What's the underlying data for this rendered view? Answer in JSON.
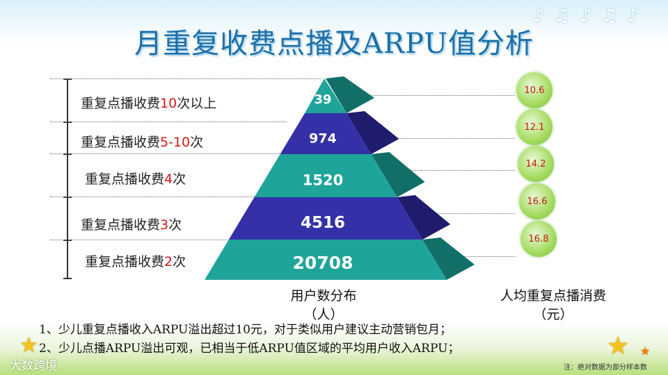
{
  "title": "月重复收费点播及ARPU值分析",
  "chart_data": {
    "type": "pyramid",
    "levels": [
      {
        "prefix": "重复点播收费",
        "highlight": "10",
        "suffix": "次以上",
        "users": 39,
        "arpu": 10.6
      },
      {
        "prefix": "重复点播收费",
        "highlight": "5-10",
        "suffix": "次",
        "users": 974,
        "arpu": 12.1
      },
      {
        "prefix": "重复点播收费",
        "highlight": "4",
        "suffix": "次",
        "users": 1520,
        "arpu": 14.2
      },
      {
        "prefix": "重复点播收费",
        "highlight": "3",
        "suffix": "次",
        "users": 4516,
        "arpu": 16.6
      },
      {
        "prefix": "重复点播收费",
        "highlight": "2",
        "suffix": "次",
        "users": 20708,
        "arpu": 16.8
      }
    ],
    "users_axis_label": "用户数分布",
    "users_unit": "（人）",
    "arpu_axis_label": "人均重复点播消费",
    "arpu_unit": "（元）"
  },
  "notes": [
    "1、少儿重复点播收入ARPU溢出超过10元，对于类似用户建议主动营销包月；",
    "2、少儿点播ARPU溢出可观，已相当于低ARPU值区域的平均用户收入ARPU；"
  ],
  "footnote": "注：绝对数据为部分样本数",
  "watermark": "大数跨境",
  "colors": {
    "teal": "#1fa49a",
    "indigo": "#3330a8",
    "title": "#1c6fa8",
    "highlight": "#d61818"
  }
}
